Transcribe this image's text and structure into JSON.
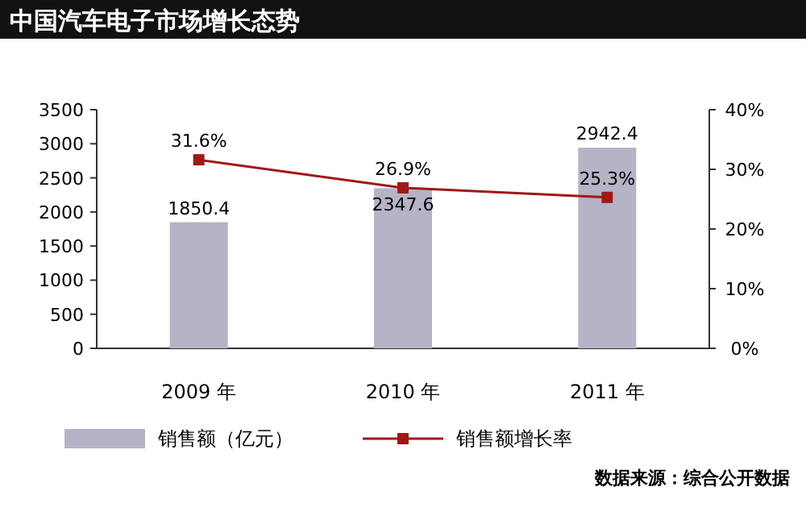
{
  "chart_data": {
    "type": "bar",
    "title": "中国汽车电子市场增长态势",
    "categories": [
      "2009 年",
      "2010 年",
      "2011 年"
    ],
    "series": [
      {
        "name": "销售额（亿元）",
        "color": "#b4b4c6",
        "values": [
          1850.4,
          2347.6,
          2942.4
        ],
        "value_labels": [
          "1850.4",
          "2347.6",
          "2942.4"
        ]
      },
      {
        "name": "销售额增长率",
        "type": "line",
        "axis": "y2",
        "color": "#a01818",
        "values": [
          31.6,
          26.9,
          25.3
        ],
        "value_labels": [
          "31.6%",
          "26.9%",
          "25.3%"
        ]
      }
    ],
    "ylim": [
      0,
      3500
    ],
    "yticks": [
      0,
      500,
      1000,
      1500,
      2000,
      2500,
      3000,
      3500
    ],
    "y2lim": [
      0,
      40
    ],
    "y2ticks": [
      {
        "value": 0,
        "label": "0%"
      },
      {
        "value": 10,
        "label": "10%"
      },
      {
        "value": 20,
        "label": "20%"
      },
      {
        "value": 30,
        "label": "30%"
      },
      {
        "value": 40,
        "label": "40%"
      }
    ],
    "marker": "square",
    "grid": false,
    "legend": "bottom",
    "annotations": [
      "数据来源：综合公开数据"
    ]
  }
}
